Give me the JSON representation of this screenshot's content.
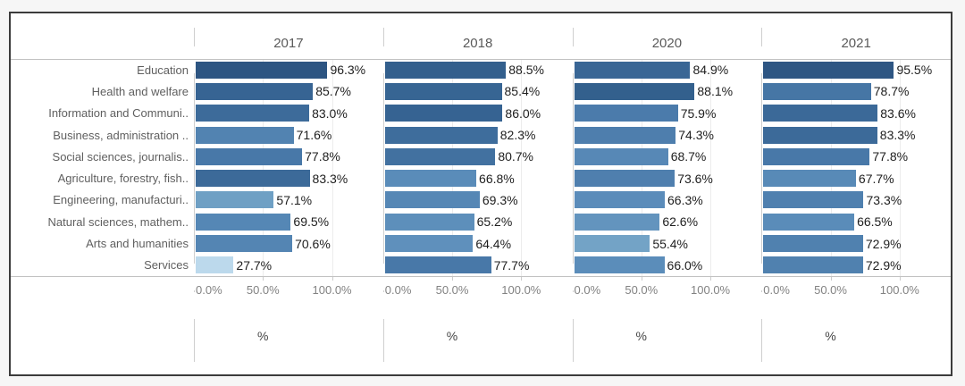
{
  "ui": {
    "frame_border_color": "#3c3c3c",
    "background_color": "#ffffff",
    "outer_background": "#f6f6f6",
    "divider_color": "#cfcfcf",
    "gridline_color": "#ececec",
    "header_text_color": "#5a5a5a",
    "category_text_color": "#5f5f5f",
    "value_text_color": "#1e1e1e",
    "tick_text_color": "#828282"
  },
  "chart_data": {
    "type": "bar",
    "orientation": "horizontal",
    "title": "",
    "xlabel": "%",
    "xlim": [
      0,
      100
    ],
    "grid": true,
    "x_ticks": [
      "0.0%",
      "50.0%",
      "100.0%"
    ],
    "x_tick_values": [
      0,
      50,
      100
    ],
    "categories": [
      "Education",
      "Health and welfare",
      "Information and Communi..",
      "Business, administration ..",
      "Social sciences, journalis..",
      "Agriculture, forestry, fish..",
      "Engineering, manufacturi..",
      "Natural sciences, mathem..",
      "Arts and humanities",
      "Services"
    ],
    "panels": [
      {
        "year": "2017",
        "values": [
          96.3,
          85.7,
          83.0,
          71.6,
          77.8,
          83.3,
          57.1,
          69.5,
          70.6,
          27.7
        ],
        "labels": [
          "96.3%",
          "85.7%",
          "83.0%",
          "71.6%",
          "77.8%",
          "83.3%",
          "57.1%",
          "69.5%",
          "70.6%",
          "27.7%"
        ],
        "colors": [
          "#2d5582",
          "#376493",
          "#3d6b9a",
          "#5283b1",
          "#4878a8",
          "#3c6a99",
          "#6fa0c4",
          "#5587b5",
          "#5485b3",
          "#bcd9ec"
        ]
      },
      {
        "year": "2018",
        "values": [
          88.5,
          85.4,
          86.0,
          82.3,
          80.7,
          66.8,
          69.3,
          65.2,
          64.4,
          77.7
        ],
        "labels": [
          "88.5%",
          "85.4%",
          "86.0%",
          "82.3%",
          "80.7%",
          "66.8%",
          "69.3%",
          "65.2%",
          "64.4%",
          "77.7%"
        ],
        "colors": [
          "#335f8d",
          "#376593",
          "#366392",
          "#3e6d9c",
          "#4271a0",
          "#5a8cb9",
          "#5687b5",
          "#5d8fbb",
          "#5f90bc",
          "#4878a8"
        ]
      },
      {
        "year": "2020",
        "values": [
          84.9,
          88.1,
          75.9,
          74.3,
          68.7,
          73.6,
          66.3,
          62.6,
          55.4,
          66.0
        ],
        "labels": [
          "84.9%",
          "88.1%",
          "75.9%",
          "74.3%",
          "68.7%",
          "73.6%",
          "66.3%",
          "62.6%",
          "55.4%",
          "66.0%"
        ],
        "colors": [
          "#396695",
          "#33608d",
          "#4b7bab",
          "#4e7ead",
          "#5788b6",
          "#4f7fae",
          "#5b8cba",
          "#6394be",
          "#73a3c6",
          "#5b8dba"
        ]
      },
      {
        "year": "2021",
        "values": [
          95.5,
          78.7,
          83.6,
          83.3,
          77.8,
          67.7,
          73.3,
          66.5,
          72.9,
          72.9
        ],
        "labels": [
          "95.5%",
          "78.7%",
          "83.6%",
          "83.3%",
          "77.8%",
          "67.7%",
          "73.3%",
          "66.5%",
          "72.9%",
          "72.9%"
        ],
        "colors": [
          "#2e5683",
          "#4676a5",
          "#3b6998",
          "#3c6a99",
          "#4878a8",
          "#588ab7",
          "#4f80af",
          "#5a8cb9",
          "#5081af",
          "#5081af"
        ]
      }
    ]
  }
}
